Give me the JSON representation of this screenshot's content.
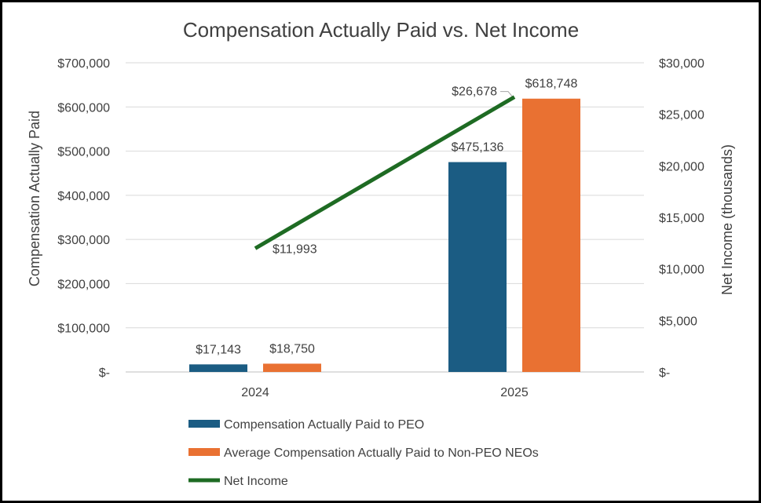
{
  "chart_data": {
    "type": "bar",
    "title": "Compensation Actually Paid vs. Net Income",
    "categories": [
      "2024",
      "2025"
    ],
    "series": [
      {
        "name": "Compensation Actually Paid to PEO",
        "kind": "bar",
        "axis": "left",
        "color": "#1b5c83",
        "values": [
          17143,
          475136
        ],
        "labels": [
          "$17,143",
          "$475,136"
        ]
      },
      {
        "name": "Average Compensation Actually Paid to Non-PEO NEOs",
        "kind": "bar",
        "axis": "left",
        "color": "#e97132",
        "values": [
          18750,
          618748
        ],
        "labels": [
          "$18,750",
          "$618,748"
        ]
      },
      {
        "name": "Net Income",
        "kind": "line",
        "axis": "right",
        "color": "#1e6b23",
        "values": [
          11993,
          26678
        ],
        "labels": [
          "$11,993",
          "$26,678"
        ]
      }
    ],
    "y_left": {
      "label": "Compensation Actually Paid",
      "min": 0,
      "max": 700000,
      "ticks": [
        {
          "value": 0,
          "label": "$-"
        },
        {
          "value": 100000,
          "label": "$100,000"
        },
        {
          "value": 200000,
          "label": "$200,000"
        },
        {
          "value": 300000,
          "label": "$300,000"
        },
        {
          "value": 400000,
          "label": "$400,000"
        },
        {
          "value": 500000,
          "label": "$500,000"
        },
        {
          "value": 600000,
          "label": "$600,000"
        },
        {
          "value": 700000,
          "label": "$700,000"
        }
      ]
    },
    "y_right": {
      "label": "Net Income (thousands)",
      "min": 0,
      "max": 30000,
      "ticks": [
        {
          "value": 0,
          "label": "$-"
        },
        {
          "value": 5000,
          "label": "$5,000"
        },
        {
          "value": 10000,
          "label": "$10,000"
        },
        {
          "value": 15000,
          "label": "$15,000"
        },
        {
          "value": 20000,
          "label": "$20,000"
        },
        {
          "value": 25000,
          "label": "$25,000"
        },
        {
          "value": 30000,
          "label": "$30,000"
        }
      ]
    },
    "grid": true,
    "legend_position": "bottom"
  }
}
